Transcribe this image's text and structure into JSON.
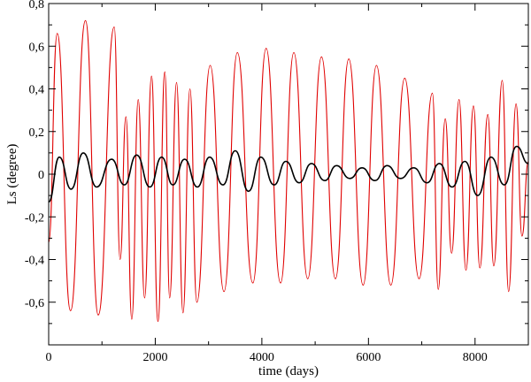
{
  "chart_data": {
    "type": "line",
    "xlabel": "time (days)",
    "ylabel": "Ls (degree)",
    "xlim": [
      0,
      9000
    ],
    "ylim": [
      -0.8,
      0.8
    ],
    "x_ticks": [
      0,
      2000,
      4000,
      6000,
      8000
    ],
    "x_tick_labels": [
      "0",
      "2000",
      "4000",
      "6000",
      "8000"
    ],
    "y_ticks": [
      -0.6,
      -0.4,
      -0.2,
      0,
      0.2,
      0.4,
      0.6,
      0.8
    ],
    "y_tick_labels": [
      "-0,6",
      "-0,4",
      "-0,2",
      "0",
      "0,2",
      "0,4",
      "0,6",
      "0,8"
    ],
    "grid": false,
    "series": [
      {
        "color": "#e00000",
        "x": [
          0,
          160,
          410,
          690,
          930,
          1230,
          1340,
          1450,
          1560,
          1680,
          1800,
          1930,
          2050,
          2180,
          2270,
          2400,
          2520,
          2650,
          2780,
          3030,
          3290,
          3540,
          3830,
          4080,
          4350,
          4600,
          4860,
          5120,
          5380,
          5630,
          5900,
          6150,
          6420,
          6680,
          6950,
          7200,
          7310,
          7440,
          7560,
          7700,
          7830,
          7970,
          8090,
          8240,
          8350,
          8510,
          8630,
          8770,
          8880,
          9000
        ],
        "y": [
          -0.32,
          0.66,
          -0.64,
          0.72,
          -0.66,
          0.69,
          -0.4,
          0.27,
          -0.68,
          0.35,
          -0.58,
          0.46,
          -0.69,
          0.48,
          -0.58,
          0.43,
          -0.65,
          0.4,
          -0.6,
          0.51,
          -0.55,
          0.57,
          -0.51,
          0.59,
          -0.51,
          0.57,
          -0.49,
          0.55,
          -0.49,
          0.54,
          -0.52,
          0.51,
          -0.52,
          0.45,
          -0.49,
          0.38,
          -0.54,
          0.26,
          -0.37,
          0.35,
          -0.45,
          0.32,
          -0.44,
          0.28,
          -0.43,
          0.44,
          -0.55,
          0.33,
          -0.29,
          0.06
        ]
      },
      {
        "color": "#000000",
        "x": [
          0,
          200,
          420,
          650,
          900,
          1180,
          1420,
          1650,
          1900,
          2120,
          2330,
          2550,
          2790,
          3020,
          3270,
          3500,
          3750,
          3980,
          4230,
          4450,
          4700,
          4930,
          5180,
          5400,
          5650,
          5880,
          6120,
          6350,
          6600,
          6850,
          7100,
          7330,
          7570,
          7810,
          8050,
          8300,
          8550,
          8780,
          9000
        ],
        "y": [
          -0.13,
          0.08,
          -0.07,
          0.1,
          -0.06,
          0.07,
          -0.05,
          0.09,
          -0.06,
          0.08,
          -0.05,
          0.07,
          -0.06,
          0.08,
          -0.05,
          0.11,
          -0.08,
          0.08,
          -0.05,
          0.06,
          -0.04,
          0.05,
          -0.03,
          0.04,
          -0.02,
          0.03,
          -0.03,
          0.04,
          -0.02,
          0.03,
          -0.04,
          0.05,
          -0.06,
          0.06,
          -0.1,
          0.08,
          -0.05,
          0.13,
          0.05
        ]
      }
    ]
  }
}
